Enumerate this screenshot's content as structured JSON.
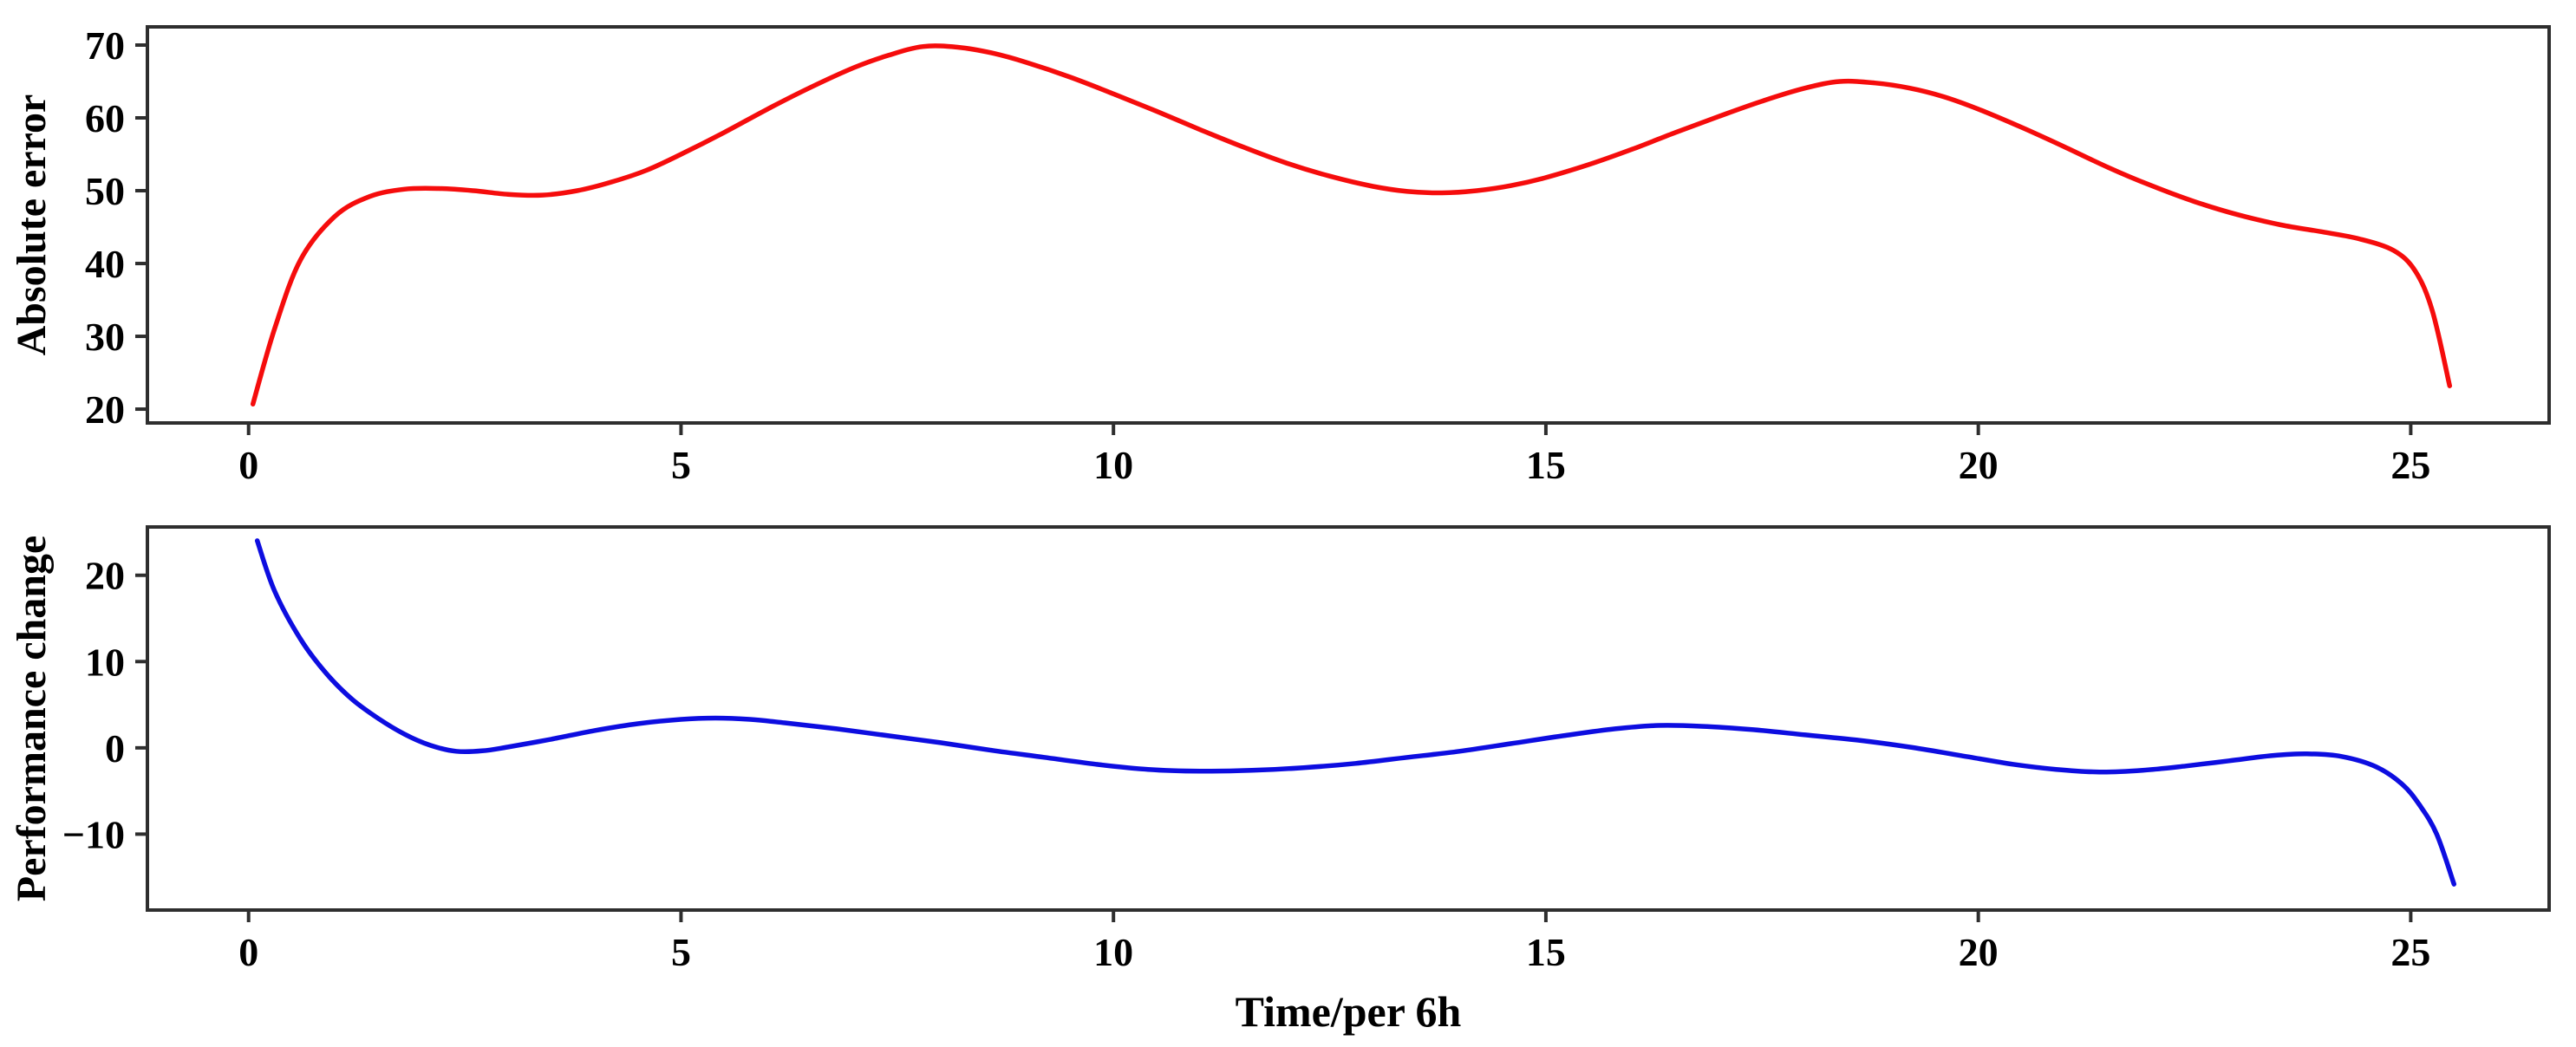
{
  "figure": {
    "background": "#ffffff",
    "spine_color": "#2e2e2e",
    "tick_color": "#2e2e2e",
    "text_color": "#000000"
  },
  "chart_data": [
    {
      "type": "line",
      "title": "",
      "ylabel": "Absolute error",
      "xlabel": "",
      "legend": "none",
      "grid": false,
      "xlim": [
        -1.17,
        26.6
      ],
      "ylim": [
        18.1,
        72.5
      ],
      "xticks": [
        0,
        5,
        10,
        15,
        20,
        25
      ],
      "yticks": [
        20,
        30,
        40,
        50,
        60,
        70
      ],
      "series": [
        {
          "name": "absolute-error",
          "color": "#f50c0c",
          "line_width": 5.5,
          "x": [
            0.05,
            0.3,
            0.6,
            1.0,
            1.4,
            1.8,
            2.2,
            2.6,
            3.0,
            3.4,
            3.8,
            4.2,
            4.6,
            5.0,
            5.5,
            6.0,
            6.5,
            7.0,
            7.4,
            7.8,
            8.2,
            8.6,
            9.0,
            9.5,
            10.0,
            10.5,
            11.0,
            11.5,
            12.0,
            12.5,
            13.0,
            13.4,
            13.8,
            14.2,
            14.6,
            15.0,
            15.5,
            16.0,
            16.5,
            17.0,
            17.5,
            18.0,
            18.4,
            18.8,
            19.2,
            19.6,
            20.0,
            20.5,
            21.0,
            21.5,
            22.0,
            22.5,
            23.0,
            23.5,
            24.0,
            24.4,
            24.8,
            25.05,
            25.25,
            25.45
          ],
          "y": [
            20.7,
            31.0,
            40.5,
            46.5,
            49.2,
            50.2,
            50.3,
            50.0,
            49.5,
            49.4,
            50.0,
            51.2,
            52.8,
            55.0,
            58.0,
            61.2,
            64.2,
            66.9,
            68.6,
            69.8,
            69.7,
            68.9,
            67.6,
            65.6,
            63.3,
            60.9,
            58.4,
            56.0,
            53.8,
            52.0,
            50.6,
            49.9,
            49.7,
            50.0,
            50.7,
            51.8,
            53.6,
            55.7,
            58.0,
            60.2,
            62.3,
            64.1,
            65.0,
            64.8,
            64.1,
            62.9,
            61.2,
            58.7,
            56.0,
            53.2,
            50.7,
            48.5,
            46.7,
            45.3,
            44.3,
            43.4,
            41.8,
            39.0,
            33.5,
            23.2
          ]
        }
      ]
    },
    {
      "type": "line",
      "title": "",
      "ylabel": "Performance change",
      "xlabel": "Time/per 6h",
      "legend": "none",
      "grid": false,
      "xlim": [
        -1.17,
        26.6
      ],
      "ylim": [
        -18.8,
        25.6
      ],
      "xticks": [
        0,
        5,
        10,
        15,
        20,
        25
      ],
      "yticks": [
        -10,
        0,
        10,
        20
      ],
      "series": [
        {
          "name": "performance-change",
          "color": "#0d0de0",
          "line_width": 5.5,
          "x": [
            0.1,
            0.3,
            0.6,
            0.9,
            1.2,
            1.5,
            1.8,
            2.1,
            2.4,
            2.7,
            3.0,
            3.5,
            4.0,
            4.5,
            5.0,
            5.4,
            5.8,
            6.2,
            6.8,
            7.4,
            8.0,
            8.6,
            9.2,
            9.8,
            10.4,
            11.0,
            11.6,
            12.2,
            12.8,
            13.4,
            14.0,
            14.6,
            15.2,
            15.8,
            16.3,
            16.8,
            17.4,
            18.0,
            18.6,
            19.2,
            19.8,
            20.4,
            20.9,
            21.4,
            21.9,
            22.4,
            22.9,
            23.4,
            23.8,
            24.2,
            24.6,
            24.9,
            25.1,
            25.3,
            25.5
          ],
          "y": [
            24.0,
            18.2,
            12.6,
            8.6,
            5.6,
            3.4,
            1.6,
            0.3,
            -0.4,
            -0.35,
            0.1,
            1.0,
            2.0,
            2.8,
            3.3,
            3.45,
            3.3,
            2.9,
            2.2,
            1.4,
            0.6,
            -0.3,
            -1.1,
            -1.9,
            -2.5,
            -2.7,
            -2.6,
            -2.3,
            -1.8,
            -1.1,
            -0.4,
            0.5,
            1.4,
            2.2,
            2.6,
            2.5,
            2.1,
            1.5,
            0.9,
            0.1,
            -0.9,
            -1.9,
            -2.5,
            -2.8,
            -2.6,
            -2.1,
            -1.5,
            -0.9,
            -0.7,
            -1.0,
            -2.2,
            -4.2,
            -6.6,
            -10.0,
            -15.8
          ]
        }
      ]
    }
  ]
}
